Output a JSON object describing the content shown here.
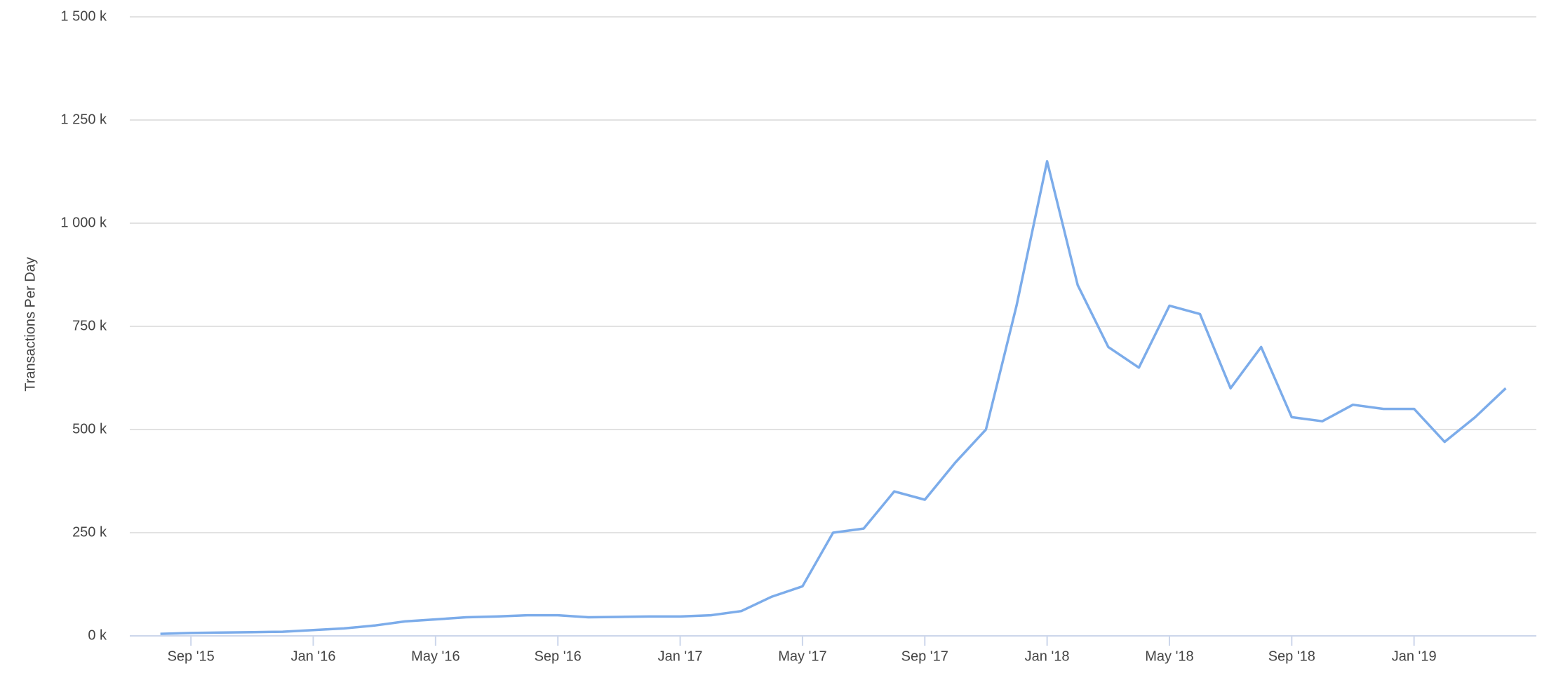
{
  "chart_data": {
    "type": "line",
    "y_label": "Transactions Per Day",
    "x": [
      "2015-08",
      "2015-09",
      "2015-10",
      "2015-11",
      "2015-12",
      "2016-01",
      "2016-02",
      "2016-03",
      "2016-04",
      "2016-05",
      "2016-06",
      "2016-07",
      "2016-08",
      "2016-09",
      "2016-10",
      "2016-11",
      "2016-12",
      "2017-01",
      "2017-02",
      "2017-03",
      "2017-04",
      "2017-05",
      "2017-06",
      "2017-07",
      "2017-08",
      "2017-09",
      "2017-10",
      "2017-11",
      "2017-12",
      "2018-01",
      "2018-02",
      "2018-03",
      "2018-04",
      "2018-05",
      "2018-06",
      "2018-07",
      "2018-08",
      "2018-09",
      "2018-10",
      "2018-11",
      "2018-12",
      "2019-01",
      "2019-02",
      "2019-03",
      "2019-04"
    ],
    "series": [
      {
        "name": "Transactions Per Day",
        "color": "#7cacea",
        "values": [
          5000,
          7000,
          8000,
          9000,
          10000,
          14000,
          18000,
          25000,
          35000,
          40000,
          45000,
          47000,
          50000,
          50000,
          45000,
          46000,
          47000,
          47000,
          50000,
          60000,
          95000,
          120000,
          250000,
          260000,
          350000,
          330000,
          420000,
          500000,
          800000,
          1150000,
          850000,
          700000,
          650000,
          800000,
          780000,
          600000,
          700000,
          530000,
          520000,
          560000,
          550000,
          550000,
          470000,
          530000,
          600000
        ]
      }
    ],
    "xlim": [
      "2015-07",
      "2019-05"
    ],
    "xticks": [
      {
        "value": "2015-09",
        "label": "Sep '15"
      },
      {
        "value": "2016-01",
        "label": "Jan '16"
      },
      {
        "value": "2016-05",
        "label": "May '16"
      },
      {
        "value": "2016-09",
        "label": "Sep '16"
      },
      {
        "value": "2017-01",
        "label": "Jan '17"
      },
      {
        "value": "2017-05",
        "label": "May '17"
      },
      {
        "value": "2017-09",
        "label": "Sep '17"
      },
      {
        "value": "2018-01",
        "label": "Jan '18"
      },
      {
        "value": "2018-05",
        "label": "May '18"
      },
      {
        "value": "2018-09",
        "label": "Sep '18"
      },
      {
        "value": "2019-01",
        "label": "Jan '19"
      }
    ],
    "ylim": [
      0,
      1500000
    ],
    "yticks": [
      {
        "value": 0,
        "label": "0 k"
      },
      {
        "value": 250000,
        "label": "250 k"
      },
      {
        "value": 500000,
        "label": "500 k"
      },
      {
        "value": 750000,
        "label": "750 k"
      },
      {
        "value": 1000000,
        "label": "1 000 k"
      },
      {
        "value": 1250000,
        "label": "1 250 k"
      },
      {
        "value": 1500000,
        "label": "1 500 k"
      }
    ],
    "grid": true
  }
}
